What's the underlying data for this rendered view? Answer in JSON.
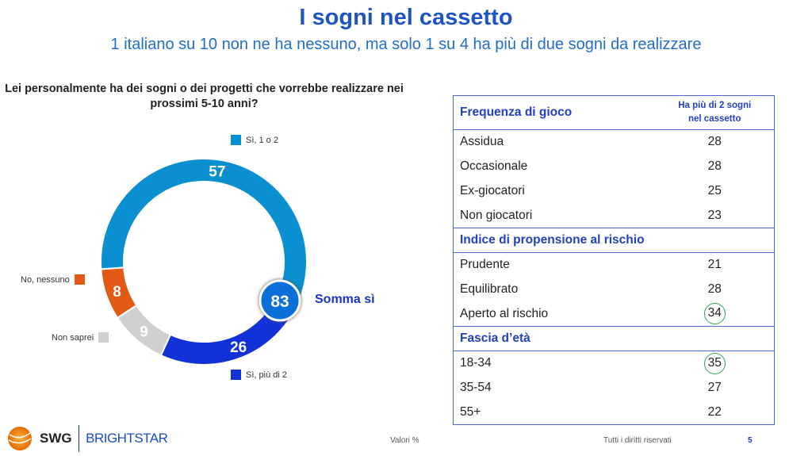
{
  "header": {
    "title": "I sogni nel cassetto",
    "subtitle": "1 italiano su 10 non ne ha nessuno, ma solo 1 su 4 ha più di due sogni da realizzare"
  },
  "chart_data": {
    "type": "pie",
    "title": "Lei personalmente ha dei sogni o dei progetti che vorrebbe realizzare nei prossimi 5-10 anni?",
    "categories": [
      "Sì, 1 o 2",
      "Sì, più di 2",
      "Non saprei",
      "No, nessuno"
    ],
    "values": [
      57,
      26,
      9,
      8
    ],
    "colors": [
      "#0a8fd0",
      "#1232d8",
      "#d0d0d0",
      "#e35a17"
    ],
    "annotation": {
      "value": "83",
      "label": "Somma sì"
    },
    "donut": true
  },
  "table": {
    "column_header": "Ha più di 2 sogni nel cassetto",
    "sections": [
      {
        "title": "Frequenza di gioco",
        "rows": [
          {
            "label": "Assidua",
            "value": "28"
          },
          {
            "label": "Occasionale",
            "value": "28"
          },
          {
            "label": "Ex-giocatori",
            "value": "25"
          },
          {
            "label": "Non giocatori",
            "value": "23"
          }
        ]
      },
      {
        "title": "Indice di propensione al rischio",
        "rows": [
          {
            "label": "Prudente",
            "value": "21"
          },
          {
            "label": "Equilibrato",
            "value": "28"
          },
          {
            "label": "Aperto al rischio",
            "value": "34",
            "highlight": true
          }
        ]
      },
      {
        "title": "Fascia d’età",
        "rows": [
          {
            "label": "18-34",
            "value": "35",
            "highlight": true
          },
          {
            "label": "35-54",
            "value": "27"
          },
          {
            "label": "55+",
            "value": "22"
          }
        ]
      }
    ]
  },
  "footer": {
    "logo1": "SWG",
    "logo2": "BRIGHTSTAR",
    "note": "Valori %",
    "rights": "Tutti i diritti riservati",
    "page": "5"
  }
}
